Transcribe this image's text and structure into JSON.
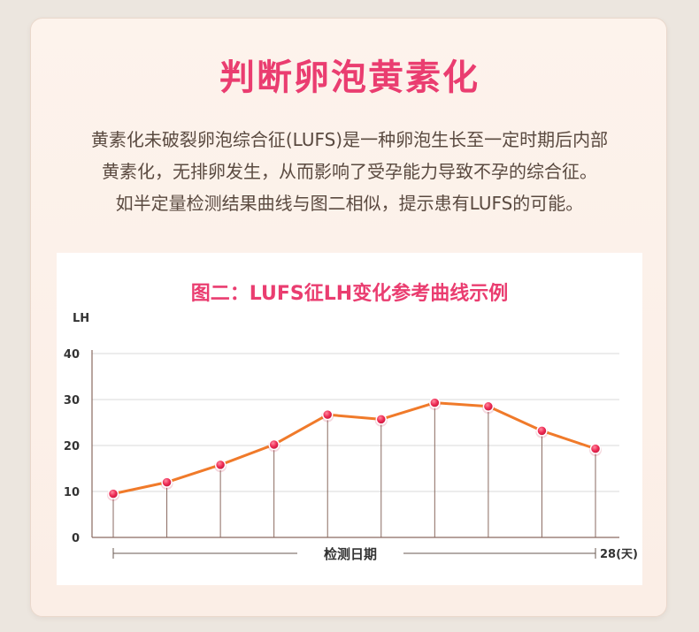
{
  "header": {
    "title": "判断卵泡黄素化",
    "description": [
      "黄素化未破裂卵泡综合征(LUFS)是一种卵泡生长至一定时期后内部",
      "黄素化，无排卵发生，从而影响了受孕能力导致不孕的综合征。",
      "如半定量检测结果曲线与图二相似，提示患有LUFS的可能。"
    ]
  },
  "colors": {
    "title": "#ea3d70",
    "line": "#f07a2a",
    "point": "#e8264f",
    "grid": "#d8d8d8",
    "stem": "#8a6a60"
  },
  "chart_data": {
    "type": "line",
    "title": "图二：LUFS征LH变化参考曲线示例",
    "ylabel": "LH",
    "xlabel": "检测日期",
    "x_end_label": "28(天)",
    "ylim": [
      0,
      40
    ],
    "yticks": [
      0,
      10,
      20,
      30,
      40
    ],
    "grid": true,
    "series": [
      {
        "values": [
          9.5,
          12,
          15.8,
          20.2,
          26.7,
          25.7,
          29.3,
          28.5,
          23.2,
          19.3
        ]
      }
    ]
  }
}
